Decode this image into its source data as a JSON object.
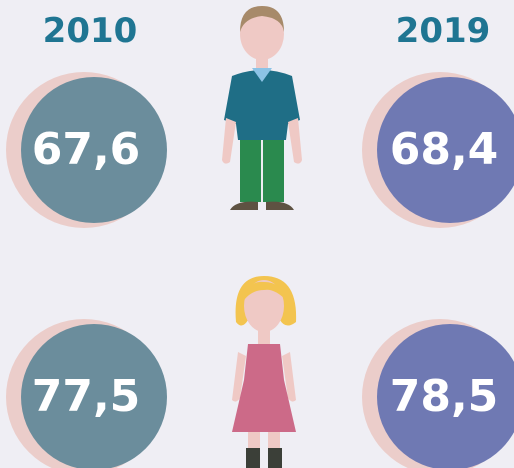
{
  "years": [
    "2010",
    "2019"
  ],
  "men": [
    "67,6",
    "68,4"
  ],
  "women": [
    "77,5",
    "78,5"
  ]
}
